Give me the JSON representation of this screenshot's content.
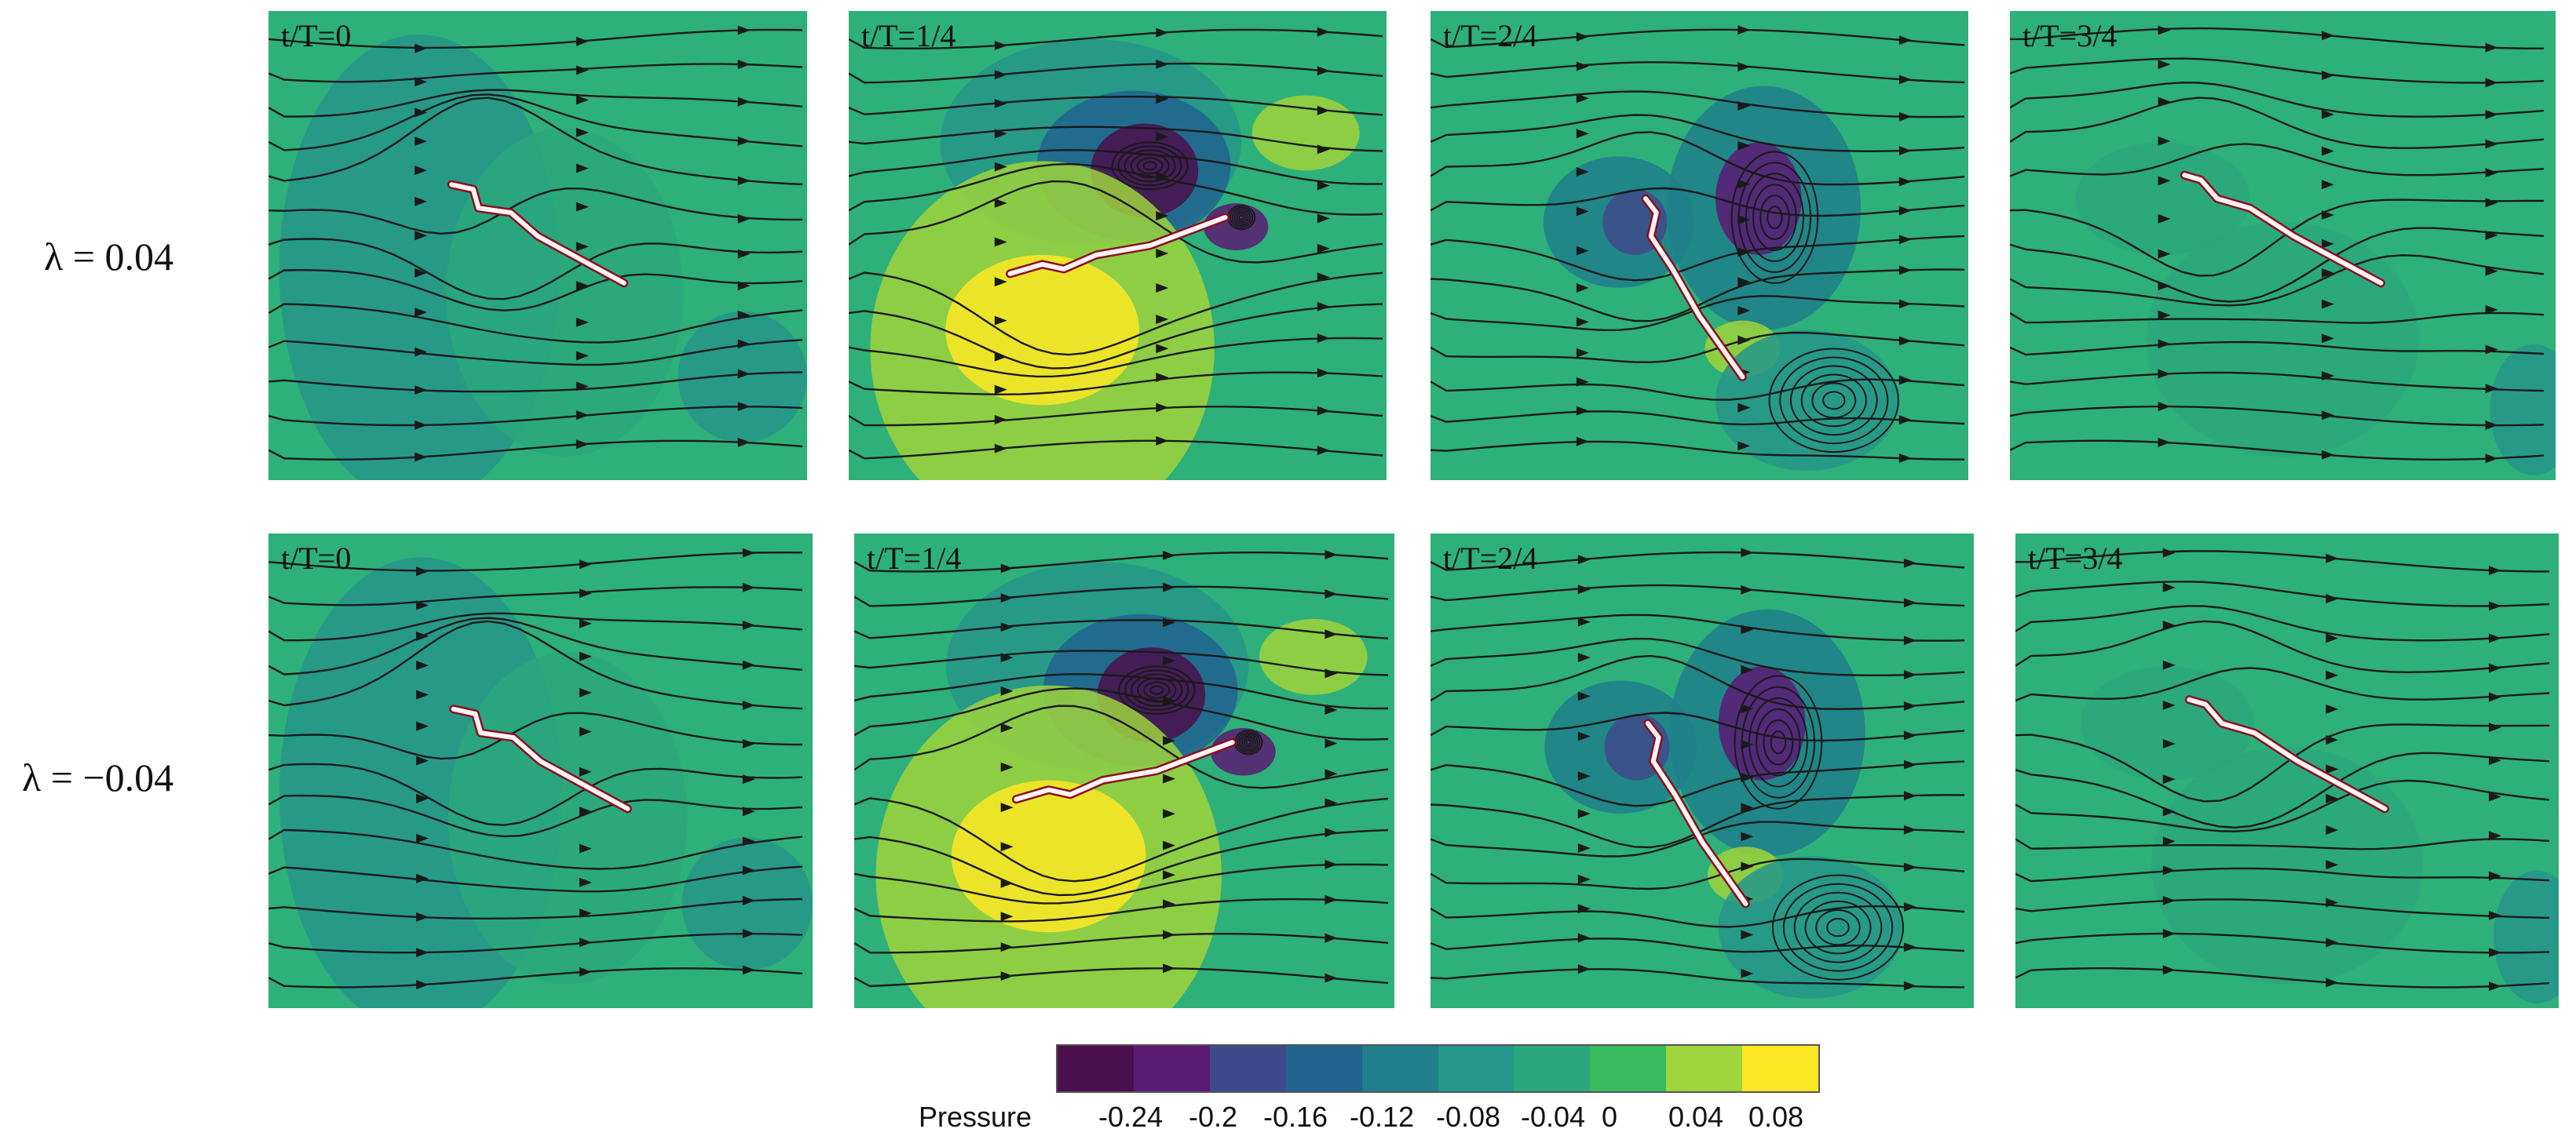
{
  "rows": [
    {
      "label": "λ = 0.04"
    },
    {
      "label": "λ = −0.04"
    }
  ],
  "panels": [
    {
      "label": "t/T=0",
      "row": 0,
      "col": 0,
      "phase": 0
    },
    {
      "label": "t/T=1/4",
      "row": 0,
      "col": 1,
      "phase": 1
    },
    {
      "label": "t/T=2/4",
      "row": 0,
      "col": 2,
      "phase": 2
    },
    {
      "label": "t/T=3/4",
      "row": 0,
      "col": 3,
      "phase": 3
    },
    {
      "label": "t/T=0",
      "row": 1,
      "col": 0,
      "phase": 0
    },
    {
      "label": "t/T=1/4",
      "row": 1,
      "col": 1,
      "phase": 1
    },
    {
      "label": "t/T=2/4",
      "row": 1,
      "col": 2,
      "phase": 2
    },
    {
      "label": "t/T=3/4",
      "row": 1,
      "col": 3,
      "phase": 3
    }
  ],
  "colorbar": {
    "title": "Pressure",
    "ticks": [
      "-0.24",
      "-0.2",
      "-0.16",
      "-0.12",
      "-0.08",
      "-0.04",
      "0",
      "0.04",
      "0.08"
    ],
    "colors": [
      "#4a0f4c",
      "#5b1a74",
      "#3f4a8c",
      "#21648f",
      "#1f7f8a",
      "#24968a",
      "#2aa87d",
      "#36bb5c",
      "#9ed43c",
      "#fde725"
    ],
    "background_color": "#2eb07a"
  }
}
